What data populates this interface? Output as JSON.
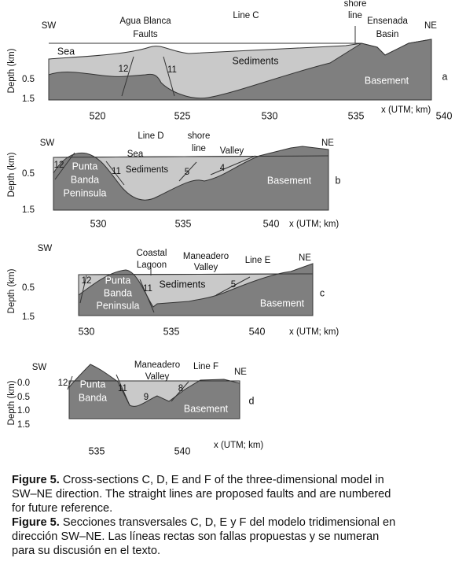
{
  "panels": [
    {
      "labels": [
        "SW",
        "Agua Blanca",
        "Faults",
        "Line C",
        "shore",
        "line",
        "Ensenada",
        "Basin",
        "NE",
        "Sea",
        "Sediments",
        "Basement",
        "12",
        "11",
        "a"
      ],
      "y_axis_title": "Depth (km)",
      "y_ticks": [
        "0.5",
        "1.5"
      ],
      "x_ticks": [
        "520",
        "525",
        "530",
        "535",
        "540"
      ],
      "x_axis_title": "x (UTM; km)"
    },
    {
      "labels": [
        "SW",
        "Line D",
        "shore",
        "line",
        "Valley",
        "NE",
        "Sea",
        "Sediments",
        "12",
        "11",
        "5",
        "4",
        "Punta",
        "Banda",
        "Peninsula",
        "Basement",
        "b"
      ],
      "y_axis_title": "Depth (km)",
      "y_ticks": [
        "0.5",
        "1.5"
      ],
      "x_ticks": [
        "530",
        "535",
        "540"
      ],
      "x_axis_title": "x (UTM; km)"
    },
    {
      "labels": [
        "SW",
        "Coastal",
        "Lagoon",
        "Maneadero",
        "Valley",
        "Line E",
        "NE",
        "12",
        "Punta",
        "Banda",
        "Peninsula",
        "11",
        "Sediments",
        "5",
        "Basement",
        "c"
      ],
      "y_axis_title": "Depth (km)",
      "y_ticks": [
        "0.5",
        "1.5"
      ],
      "x_ticks": [
        "530",
        "535",
        "540"
      ],
      "x_axis_title": "x (UTM; km)"
    },
    {
      "labels": [
        "SW",
        "Maneadero",
        "Valley",
        "Line F",
        "NE",
        "12",
        "11",
        "9",
        "8",
        "Punta",
        "Banda",
        "Basement",
        "d"
      ],
      "y_axis_title": "Depth (km)",
      "y_ticks": [
        "0.0",
        "0.5",
        "1.0",
        "1.5"
      ],
      "x_ticks": [
        "535",
        "540"
      ],
      "x_axis_title": "x (UTM; km)"
    }
  ],
  "caption": {
    "english": {
      "label": "Figure 5.",
      "lines": [
        " Cross-sections C, D, E and F of the three-dimensional model in",
        "SW–NE direction. The straight lines are proposed faults and are numbered",
        "for future reference."
      ]
    },
    "spanish": {
      "label": "Figure 5.",
      "lines": [
        " Secciones transversales C, D, E y F del modelo tridimensional en",
        "dirección SW–NE. Las líneas rectas son fallas propuestas y se numeran",
        "para su discusión en el texto."
      ]
    }
  }
}
